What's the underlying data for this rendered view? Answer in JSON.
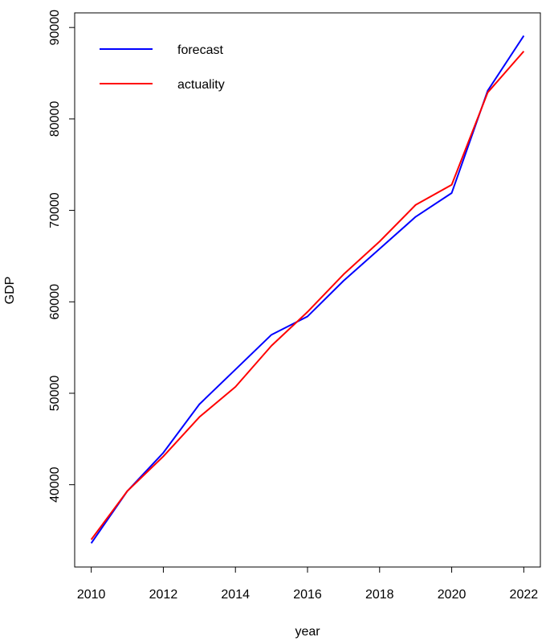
{
  "chart_data": {
    "type": "line",
    "title": "",
    "xlabel": "year",
    "ylabel": "GDP",
    "x": [
      2010,
      2011,
      2012,
      2013,
      2014,
      2015,
      2016,
      2017,
      2018,
      2019,
      2020,
      2021,
      2022
    ],
    "xticks": [
      "2010",
      "2012",
      "2014",
      "2016",
      "2018",
      "2020",
      "2022"
    ],
    "yticks": [
      "40000",
      "50000",
      "60000",
      "70000",
      "80000",
      "90000"
    ],
    "xlim": [
      2009.54,
      2022.46
    ],
    "ylim": [
      31000,
      91600
    ],
    "grid": false,
    "legend_position": "top-left",
    "series": [
      {
        "name": "forecast",
        "color": "#0000ff",
        "values": [
          33600,
          39300,
          43500,
          48800,
          52600,
          56400,
          58400,
          62300,
          65800,
          69300,
          71900,
          83100,
          89100
        ]
      },
      {
        "name": "actuality",
        "color": "#ff0000",
        "values": [
          34000,
          39300,
          43100,
          47400,
          50700,
          55200,
          58900,
          63000,
          66600,
          70600,
          72800,
          82900,
          87400
        ]
      }
    ]
  }
}
